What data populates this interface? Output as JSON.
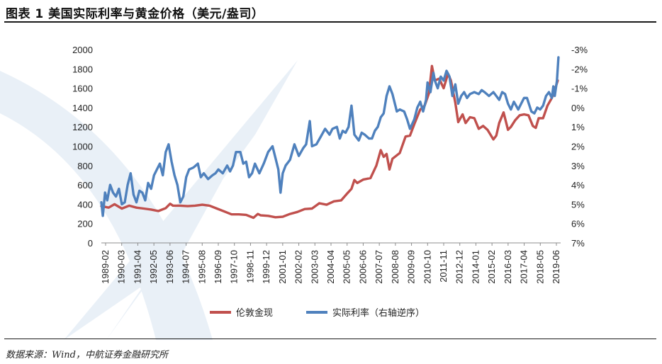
{
  "header": {
    "title": "图表 1 美国实际利率与黄金价格（美元/盎司）"
  },
  "footer": {
    "source": "数据来源：Wind，中航证券金融研究所"
  },
  "chart_data": {
    "type": "line",
    "title": "图表 1 美国实际利率与黄金价格（美元/盎司）",
    "x_tick_labels": [
      "1989-02",
      "1990-03",
      "1991-04",
      "1992-05",
      "1993-06",
      "1994-07",
      "1995-08",
      "1996-09",
      "1997-10",
      "1998-11",
      "1999-12",
      "2001-01",
      "2002-02",
      "2003-03",
      "2004-04",
      "2005-05",
      "2006-06",
      "2007-07",
      "2008-08",
      "2009-09",
      "2010-10",
      "2011-11",
      "2012-12",
      "2014-01",
      "2015-02",
      "2016-03",
      "2017-04",
      "2018-05",
      "2019-06"
    ],
    "x_range": [
      1989.1,
      2020.5
    ],
    "y_left": {
      "label": "",
      "ticks": [
        "0",
        "200",
        "400",
        "600",
        "800",
        "1000",
        "1200",
        "1400",
        "1600",
        "1800",
        "2000"
      ],
      "range": [
        0,
        2000
      ]
    },
    "y_right": {
      "label": "",
      "reversed": true,
      "ticks": [
        "-3%",
        "-2%",
        "-1%",
        "0%",
        "1%",
        "2%",
        "3%",
        "4%",
        "5%",
        "6%",
        "7%"
      ],
      "range": [
        -3,
        7
      ]
    },
    "grid": false,
    "legend_position": "bottom-center",
    "series": [
      {
        "name": "伦敦金现",
        "axis": "left",
        "color": "#c0504d",
        "points": [
          [
            1989.1,
            380
          ],
          [
            1989.6,
            365
          ],
          [
            1990.0,
            400
          ],
          [
            1990.5,
            355
          ],
          [
            1991.0,
            385
          ],
          [
            1991.5,
            365
          ],
          [
            1992.0,
            355
          ],
          [
            1992.5,
            345
          ],
          [
            1993.0,
            330
          ],
          [
            1993.5,
            360
          ],
          [
            1993.8,
            405
          ],
          [
            1994.0,
            385
          ],
          [
            1994.5,
            385
          ],
          [
            1995.0,
            380
          ],
          [
            1995.5,
            385
          ],
          [
            1996.0,
            395
          ],
          [
            1996.5,
            385
          ],
          [
            1997.0,
            355
          ],
          [
            1997.5,
            325
          ],
          [
            1998.0,
            295
          ],
          [
            1998.5,
            295
          ],
          [
            1999.0,
            290
          ],
          [
            1999.5,
            260
          ],
          [
            1999.8,
            300
          ],
          [
            2000.0,
            285
          ],
          [
            2000.5,
            280
          ],
          [
            2001.0,
            265
          ],
          [
            2001.5,
            270
          ],
          [
            2002.0,
            300
          ],
          [
            2002.5,
            320
          ],
          [
            2003.0,
            350
          ],
          [
            2003.5,
            355
          ],
          [
            2004.0,
            410
          ],
          [
            2004.5,
            395
          ],
          [
            2005.0,
            430
          ],
          [
            2005.5,
            440
          ],
          [
            2005.9,
            510
          ],
          [
            2006.2,
            560
          ],
          [
            2006.4,
            650
          ],
          [
            2006.6,
            620
          ],
          [
            2007.0,
            655
          ],
          [
            2007.5,
            670
          ],
          [
            2007.9,
            800
          ],
          [
            2008.2,
            960
          ],
          [
            2008.4,
            890
          ],
          [
            2008.6,
            920
          ],
          [
            2008.8,
            760
          ],
          [
            2009.0,
            870
          ],
          [
            2009.5,
            930
          ],
          [
            2009.9,
            1100
          ],
          [
            2010.2,
            1110
          ],
          [
            2010.5,
            1230
          ],
          [
            2010.9,
            1380
          ],
          [
            2011.2,
            1420
          ],
          [
            2011.5,
            1550
          ],
          [
            2011.7,
            1830
          ],
          [
            2011.9,
            1680
          ],
          [
            2012.2,
            1700
          ],
          [
            2012.5,
            1600
          ],
          [
            2012.8,
            1750
          ],
          [
            2013.0,
            1680
          ],
          [
            2013.3,
            1450
          ],
          [
            2013.5,
            1250
          ],
          [
            2013.8,
            1330
          ],
          [
            2014.0,
            1240
          ],
          [
            2014.3,
            1300
          ],
          [
            2014.6,
            1290
          ],
          [
            2014.9,
            1180
          ],
          [
            2015.2,
            1210
          ],
          [
            2015.5,
            1170
          ],
          [
            2015.9,
            1070
          ],
          [
            2016.1,
            1110
          ],
          [
            2016.3,
            1240
          ],
          [
            2016.6,
            1350
          ],
          [
            2016.9,
            1170
          ],
          [
            2017.1,
            1200
          ],
          [
            2017.4,
            1270
          ],
          [
            2017.7,
            1320
          ],
          [
            2018.0,
            1330
          ],
          [
            2018.3,
            1320
          ],
          [
            2018.6,
            1210
          ],
          [
            2018.8,
            1190
          ],
          [
            2019.0,
            1290
          ],
          [
            2019.3,
            1290
          ],
          [
            2019.6,
            1420
          ],
          [
            2019.9,
            1500
          ],
          [
            2020.1,
            1580
          ],
          [
            2020.3,
            1680
          ]
        ]
      },
      {
        "name": "实际利率（右轴逆序）",
        "axis": "right",
        "color": "#4f81bd",
        "points": [
          [
            1989.1,
            4.9
          ],
          [
            1989.2,
            5.6
          ],
          [
            1989.35,
            4.4
          ],
          [
            1989.5,
            4.8
          ],
          [
            1989.7,
            4.0
          ],
          [
            1989.9,
            4.4
          ],
          [
            1990.1,
            4.6
          ],
          [
            1990.3,
            4.2
          ],
          [
            1990.5,
            5.0
          ],
          [
            1990.7,
            4.9
          ],
          [
            1990.9,
            4.0
          ],
          [
            1991.1,
            3.4
          ],
          [
            1991.3,
            4.5
          ],
          [
            1991.5,
            4.9
          ],
          [
            1991.7,
            4.3
          ],
          [
            1991.9,
            4.4
          ],
          [
            1992.1,
            4.8
          ],
          [
            1992.3,
            3.9
          ],
          [
            1992.5,
            4.2
          ],
          [
            1992.7,
            3.5
          ],
          [
            1992.9,
            3.2
          ],
          [
            1993.1,
            2.9
          ],
          [
            1993.3,
            3.5
          ],
          [
            1993.5,
            2.3
          ],
          [
            1993.7,
            1.9
          ],
          [
            1993.9,
            2.8
          ],
          [
            1994.1,
            3.5
          ],
          [
            1994.3,
            4.0
          ],
          [
            1994.5,
            4.9
          ],
          [
            1994.7,
            4.6
          ],
          [
            1994.9,
            3.6
          ],
          [
            1995.1,
            3.2
          ],
          [
            1995.4,
            3.1
          ],
          [
            1995.7,
            2.9
          ],
          [
            1995.9,
            3.6
          ],
          [
            1996.1,
            3.4
          ],
          [
            1996.4,
            3.7
          ],
          [
            1996.7,
            3.5
          ],
          [
            1996.9,
            3.4
          ],
          [
            1997.1,
            3.2
          ],
          [
            1997.4,
            3.4
          ],
          [
            1997.7,
            3.0
          ],
          [
            1997.9,
            3.3
          ],
          [
            1998.1,
            3.0
          ],
          [
            1998.3,
            2.3
          ],
          [
            1998.6,
            2.3
          ],
          [
            1998.8,
            2.9
          ],
          [
            1999.0,
            2.8
          ],
          [
            1999.2,
            3.6
          ],
          [
            1999.4,
            3.4
          ],
          [
            1999.6,
            2.9
          ],
          [
            1999.9,
            3.4
          ],
          [
            2000.2,
            2.9
          ],
          [
            2000.5,
            2.3
          ],
          [
            2000.8,
            2.0
          ],
          [
            2001.0,
            2.6
          ],
          [
            2001.2,
            3.2
          ],
          [
            2001.35,
            4.4
          ],
          [
            2001.5,
            3.4
          ],
          [
            2001.7,
            3.0
          ],
          [
            2002.0,
            2.7
          ],
          [
            2002.3,
            1.9
          ],
          [
            2002.6,
            2.5
          ],
          [
            2002.9,
            2.1
          ],
          [
            2003.1,
            1.9
          ],
          [
            2003.35,
            0.7
          ],
          [
            2003.5,
            2.0
          ],
          [
            2003.8,
            1.9
          ],
          [
            2004.1,
            1.5
          ],
          [
            2004.4,
            1.1
          ],
          [
            2004.7,
            1.4
          ],
          [
            2004.9,
            1.1
          ],
          [
            2005.2,
            1.0
          ],
          [
            2005.4,
            1.6
          ],
          [
            2005.6,
            1.2
          ],
          [
            2005.8,
            1.3
          ],
          [
            2006.0,
            1.0
          ],
          [
            2006.2,
            -0.1
          ],
          [
            2006.4,
            1.4
          ],
          [
            2006.7,
            1.7
          ],
          [
            2006.9,
            1.3
          ],
          [
            2007.1,
            1.4
          ],
          [
            2007.4,
            1.6
          ],
          [
            2007.6,
            1.6
          ],
          [
            2007.8,
            1.2
          ],
          [
            2008.0,
            1.0
          ],
          [
            2008.2,
            0.5
          ],
          [
            2008.4,
            0.3
          ],
          [
            2008.6,
            -0.6
          ],
          [
            2008.8,
            -1.1
          ],
          [
            2009.0,
            -0.7
          ],
          [
            2009.3,
            0.2
          ],
          [
            2009.5,
            0.1
          ],
          [
            2009.8,
            0.2
          ],
          [
            2010.0,
            0.6
          ],
          [
            2010.2,
            1.1
          ],
          [
            2010.5,
            0.6
          ],
          [
            2010.7,
            0.0
          ],
          [
            2010.9,
            -0.3
          ],
          [
            2011.1,
            0.2
          ],
          [
            2011.3,
            -0.4
          ],
          [
            2011.4,
            -1.3
          ],
          [
            2011.6,
            -0.8
          ],
          [
            2011.8,
            -1.8
          ],
          [
            2011.9,
            -1.4
          ],
          [
            2012.1,
            -1.0
          ],
          [
            2012.3,
            -1.6
          ],
          [
            2012.5,
            -1.4
          ],
          [
            2012.7,
            -1.9
          ],
          [
            2012.9,
            -1.6
          ],
          [
            2013.1,
            -0.6
          ],
          [
            2013.3,
            -1.2
          ],
          [
            2013.5,
            -0.2
          ],
          [
            2013.7,
            -0.6
          ],
          [
            2013.9,
            -0.8
          ],
          [
            2014.1,
            -0.5
          ],
          [
            2014.3,
            -0.7
          ],
          [
            2014.6,
            -0.8
          ],
          [
            2014.9,
            -0.7
          ],
          [
            2015.1,
            -0.9
          ],
          [
            2015.3,
            -0.8
          ],
          [
            2015.6,
            -0.6
          ],
          [
            2015.9,
            -0.8
          ],
          [
            2016.1,
            -0.6
          ],
          [
            2016.3,
            -0.4
          ],
          [
            2016.5,
            -0.8
          ],
          [
            2016.7,
            -0.7
          ],
          [
            2016.9,
            -0.2
          ],
          [
            2017.1,
            0.1
          ],
          [
            2017.3,
            -0.3
          ],
          [
            2017.6,
            0.1
          ],
          [
            2017.8,
            -0.2
          ],
          [
            2018.0,
            -0.5
          ],
          [
            2018.2,
            -0.5
          ],
          [
            2018.5,
            0.2
          ],
          [
            2018.7,
            0.3
          ],
          [
            2018.9,
            0.0
          ],
          [
            2019.1,
            0.1
          ],
          [
            2019.3,
            -0.1
          ],
          [
            2019.5,
            -0.6
          ],
          [
            2019.7,
            -0.8
          ],
          [
            2019.9,
            -0.5
          ],
          [
            2020.0,
            -1.1
          ],
          [
            2020.1,
            -0.6
          ],
          [
            2020.25,
            -1.4
          ],
          [
            2020.35,
            -2.6
          ]
        ]
      }
    ]
  }
}
